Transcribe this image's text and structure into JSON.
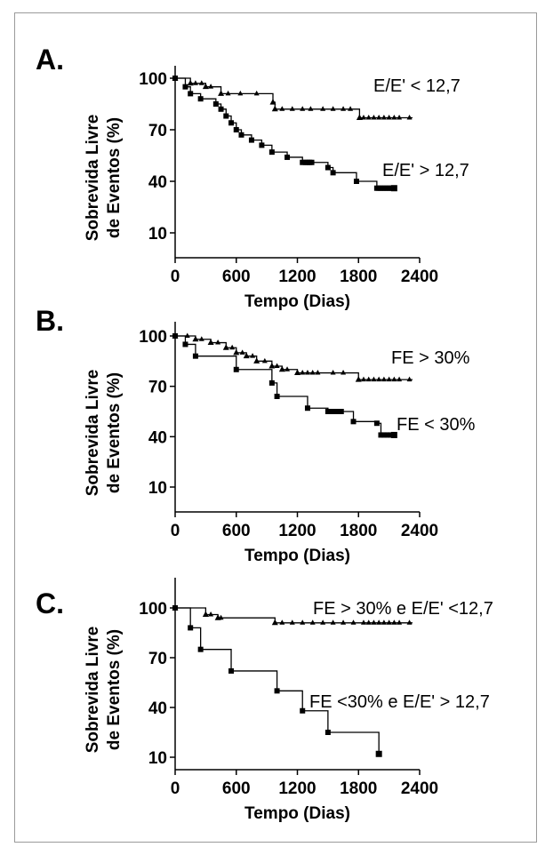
{
  "chart_data": [
    {
      "type": "line",
      "panel_label": "A.",
      "xlabel": "Tempo (Dias)",
      "ylabel_lines": [
        "Sobrevida Livre",
        "de Eventos (%)"
      ],
      "xlim": [
        0,
        2400
      ],
      "ylim": [
        0,
        100
      ],
      "xticks": [
        0,
        600,
        1200,
        1800,
        2400
      ],
      "yticks": [
        10,
        40,
        70,
        100
      ],
      "series": [
        {
          "name": "E/E' < 12,7",
          "marker": "triangle",
          "steps": [
            [
              0,
              100
            ],
            [
              150,
              97
            ],
            [
              300,
              95
            ],
            [
              450,
              91
            ],
            [
              950,
              91
            ],
            [
              960,
              86
            ],
            [
              980,
              82
            ],
            [
              1800,
              82
            ],
            [
              1810,
              77
            ],
            [
              2330,
              77
            ]
          ],
          "censors": [
            200,
            260,
            350,
            520,
            640,
            800,
            1050,
            1150,
            1250,
            1330,
            1450,
            1550,
            1650,
            1720,
            1850,
            1900,
            1950,
            2000,
            2050,
            2100,
            2150,
            2200,
            2300
          ]
        },
        {
          "name": "E/E' > 12,7",
          "marker": "square",
          "steps": [
            [
              0,
              100
            ],
            [
              100,
              95
            ],
            [
              150,
              91
            ],
            [
              250,
              88
            ],
            [
              400,
              85
            ],
            [
              450,
              82
            ],
            [
              500,
              78
            ],
            [
              550,
              74
            ],
            [
              600,
              70
            ],
            [
              650,
              67
            ],
            [
              750,
              64
            ],
            [
              850,
              61
            ],
            [
              950,
              57
            ],
            [
              1100,
              54
            ],
            [
              1250,
              51
            ],
            [
              1500,
              48
            ],
            [
              1550,
              45
            ],
            [
              1780,
              40
            ],
            [
              1980,
              36
            ],
            [
              2150,
              36
            ]
          ],
          "censors": [
            1280,
            1300,
            1320,
            1340,
            2000,
            2020,
            2040,
            2060,
            2080,
            2100,
            2120,
            2140
          ]
        }
      ]
    },
    {
      "type": "line",
      "panel_label": "B.",
      "xlabel": "Tempo (Dias)",
      "ylabel_lines": [
        "Sobrevida Livre",
        "de Eventos (%)"
      ],
      "xlim": [
        0,
        2400
      ],
      "ylim": [
        0,
        100
      ],
      "xticks": [
        0,
        600,
        1200,
        1800,
        2400
      ],
      "yticks": [
        10,
        40,
        70,
        100
      ],
      "series": [
        {
          "name": "FE > 30%",
          "marker": "triangle",
          "steps": [
            [
              0,
              100
            ],
            [
              200,
              98
            ],
            [
              350,
              96
            ],
            [
              500,
              93
            ],
            [
              600,
              90
            ],
            [
              700,
              88
            ],
            [
              800,
              85
            ],
            [
              950,
              82
            ],
            [
              1050,
              80
            ],
            [
              1200,
              78
            ],
            [
              1750,
              78
            ],
            [
              1800,
              74
            ],
            [
              2330,
              74
            ]
          ],
          "censors": [
            120,
            260,
            420,
            560,
            660,
            760,
            880,
            1000,
            1100,
            1250,
            1300,
            1350,
            1400,
            1550,
            1650,
            1850,
            1900,
            1950,
            2000,
            2050,
            2100,
            2150,
            2200,
            2300
          ]
        },
        {
          "name": "FE < 30%",
          "marker": "square",
          "steps": [
            [
              0,
              100
            ],
            [
              100,
              95
            ],
            [
              200,
              88
            ],
            [
              600,
              80
            ],
            [
              950,
              72
            ],
            [
              1000,
              64
            ],
            [
              1300,
              57
            ],
            [
              1500,
              55
            ],
            [
              1750,
              49
            ],
            [
              1980,
              48
            ],
            [
              2020,
              41
            ],
            [
              2150,
              41
            ]
          ],
          "censors": [
            1530,
            1550,
            1570,
            1590,
            1610,
            1630,
            2050,
            2080,
            2110,
            2140
          ]
        }
      ]
    },
    {
      "type": "line",
      "panel_label": "C.",
      "xlabel": "Tempo (Dias)",
      "ylabel_lines": [
        "Sobrevida Livre",
        "de Eventos (%)"
      ],
      "xlim": [
        0,
        2400
      ],
      "ylim": [
        0,
        100
      ],
      "xticks": [
        0,
        600,
        1200,
        1800,
        2400
      ],
      "yticks": [
        10,
        40,
        70,
        100
      ],
      "series": [
        {
          "name": "FE > 30% e E/E' <12,7",
          "marker": "triangle",
          "steps": [
            [
              0,
              100
            ],
            [
              300,
              96
            ],
            [
              420,
              94
            ],
            [
              950,
              94
            ],
            [
              980,
              91
            ],
            [
              2330,
              91
            ]
          ],
          "censors": [
            350,
            450,
            1050,
            1150,
            1250,
            1350,
            1450,
            1550,
            1650,
            1750,
            1850,
            1900,
            1950,
            2000,
            2050,
            2100,
            2150,
            2200,
            2300
          ]
        },
        {
          "name": "FE <30% e E/E' > 12,7",
          "marker": "square",
          "steps": [
            [
              0,
              100
            ],
            [
              150,
              88
            ],
            [
              250,
              75
            ],
            [
              550,
              62
            ],
            [
              1000,
              50
            ],
            [
              1250,
              38
            ],
            [
              1500,
              25
            ],
            [
              2000,
              12
            ]
          ],
          "censors": []
        }
      ]
    }
  ]
}
